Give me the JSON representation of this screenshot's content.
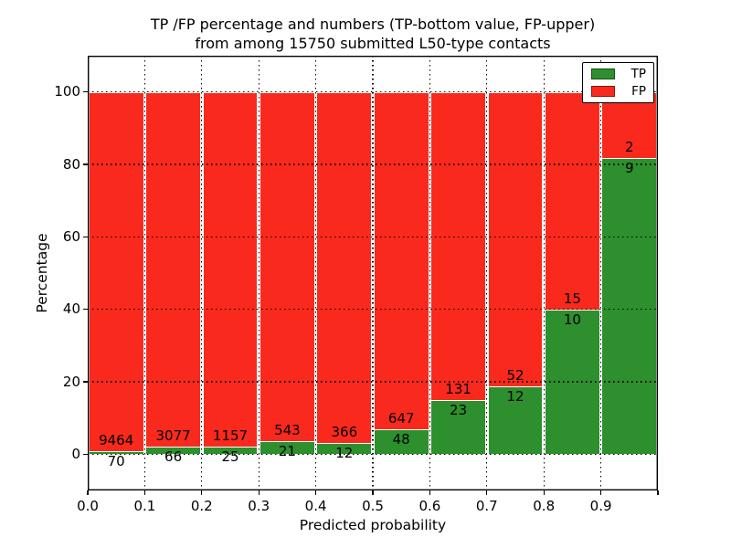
{
  "title": {
    "line1": "TP /FP percentage and numbers (TP-bottom value, FP-upper)",
    "line2": "from among 15750 submitted L50-type contacts"
  },
  "chart_data": {
    "type": "bar",
    "stacked": true,
    "normalized_to_percent": true,
    "title": "TP /FP percentage and numbers (TP-bottom value, FP-upper)\nfrom among 15750 submitted L50-type contacts",
    "xlabel": "Predicted probability",
    "ylabel": "Percentage",
    "total_contacts": 15750,
    "bins": [
      0.0,
      0.1,
      0.2,
      0.3,
      0.4,
      0.5,
      0.6,
      0.7,
      0.8,
      0.9
    ],
    "x_ticks": [
      "0.0",
      "0.1",
      "0.2",
      "0.3",
      "0.4",
      "0.5",
      "0.6",
      "0.7",
      "0.8",
      "0.9"
    ],
    "y_ticks": [
      0,
      20,
      40,
      60,
      80,
      100
    ],
    "xlim": [
      0.0,
      1.0
    ],
    "ylim": [
      -10,
      110
    ],
    "grid": "dotted",
    "series": [
      {
        "name": "TP",
        "color": "#2d8f2d",
        "counts": [
          70,
          66,
          25,
          21,
          12,
          48,
          23,
          12,
          10,
          9
        ]
      },
      {
        "name": "FP",
        "color": "#f9291d",
        "counts": [
          9464,
          3077,
          1157,
          543,
          366,
          647,
          131,
          52,
          15,
          2
        ]
      }
    ],
    "tp_percent": [
      0.73,
      2.1,
      2.11,
      3.72,
      3.17,
      6.91,
      14.94,
      18.75,
      40.0,
      81.82
    ],
    "legend": {
      "position": "upper right",
      "entries": [
        {
          "label": "TP",
          "color": "#2d8f2d"
        },
        {
          "label": "FP",
          "color": "#f9291d"
        }
      ]
    }
  }
}
